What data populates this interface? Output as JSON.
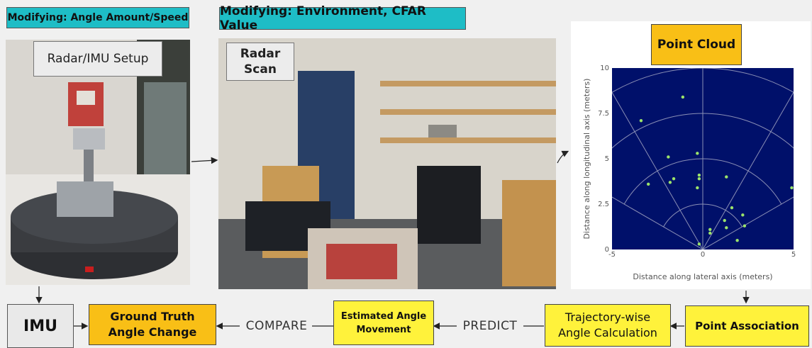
{
  "headers": {
    "left": "Modifying: Angle Amount/Speed",
    "middle": "Modifying: Environment, CFAR Value"
  },
  "photos": {
    "setup_label": "Radar/IMU Setup",
    "scan_label_line1": "Radar",
    "scan_label_line2": "Scan"
  },
  "point_cloud": {
    "title": "Point Cloud"
  },
  "flow": {
    "imu": "IMU",
    "ground_truth_line1": "Ground Truth",
    "ground_truth_line2": "Angle Change",
    "compare": "COMPARE",
    "estimated_line1": "Estimated Angle",
    "estimated_line2": "Movement",
    "predict": "PREDICT",
    "trajectory_line1": "Trajectory-wise",
    "trajectory_line2": "Angle Calculation",
    "point_association": "Point Association"
  },
  "colors": {
    "teal": "#1ebdc6",
    "orange": "#f9bf16",
    "yellow": "#fff23b",
    "plot_bg": "#00106a",
    "points": "#9be36a"
  },
  "chart_data": {
    "type": "scatter",
    "title": "",
    "xlabel": "Distance along lateral axis (meters)",
    "ylabel": "Distance along longitudinal axis (meters)",
    "xlim": [
      -5,
      5
    ],
    "ylim": [
      0,
      10
    ],
    "x_ticks": [
      "-5",
      "0",
      "5"
    ],
    "y_ticks": [
      "0",
      "2.5",
      "5",
      "7.5",
      "10"
    ],
    "grid": "polar",
    "points": [
      {
        "x": -1.1,
        "y": 8.4
      },
      {
        "x": -3.4,
        "y": 7.1
      },
      {
        "x": -1.9,
        "y": 5.1
      },
      {
        "x": -0.3,
        "y": 5.3
      },
      {
        "x": -1.6,
        "y": 3.9
      },
      {
        "x": -1.8,
        "y": 3.7
      },
      {
        "x": -0.2,
        "y": 4.1
      },
      {
        "x": -0.2,
        "y": 3.9
      },
      {
        "x": -0.3,
        "y": 3.4
      },
      {
        "x": -3.0,
        "y": 3.6
      },
      {
        "x": 1.3,
        "y": 4.0
      },
      {
        "x": 4.9,
        "y": 3.4
      },
      {
        "x": 1.6,
        "y": 2.3
      },
      {
        "x": 2.2,
        "y": 1.9
      },
      {
        "x": 1.2,
        "y": 1.6
      },
      {
        "x": 1.3,
        "y": 1.2
      },
      {
        "x": 2.3,
        "y": 1.3
      },
      {
        "x": 0.4,
        "y": 1.1
      },
      {
        "x": 0.4,
        "y": 0.9
      },
      {
        "x": 1.9,
        "y": 0.5
      },
      {
        "x": -0.2,
        "y": 0.3
      }
    ]
  }
}
